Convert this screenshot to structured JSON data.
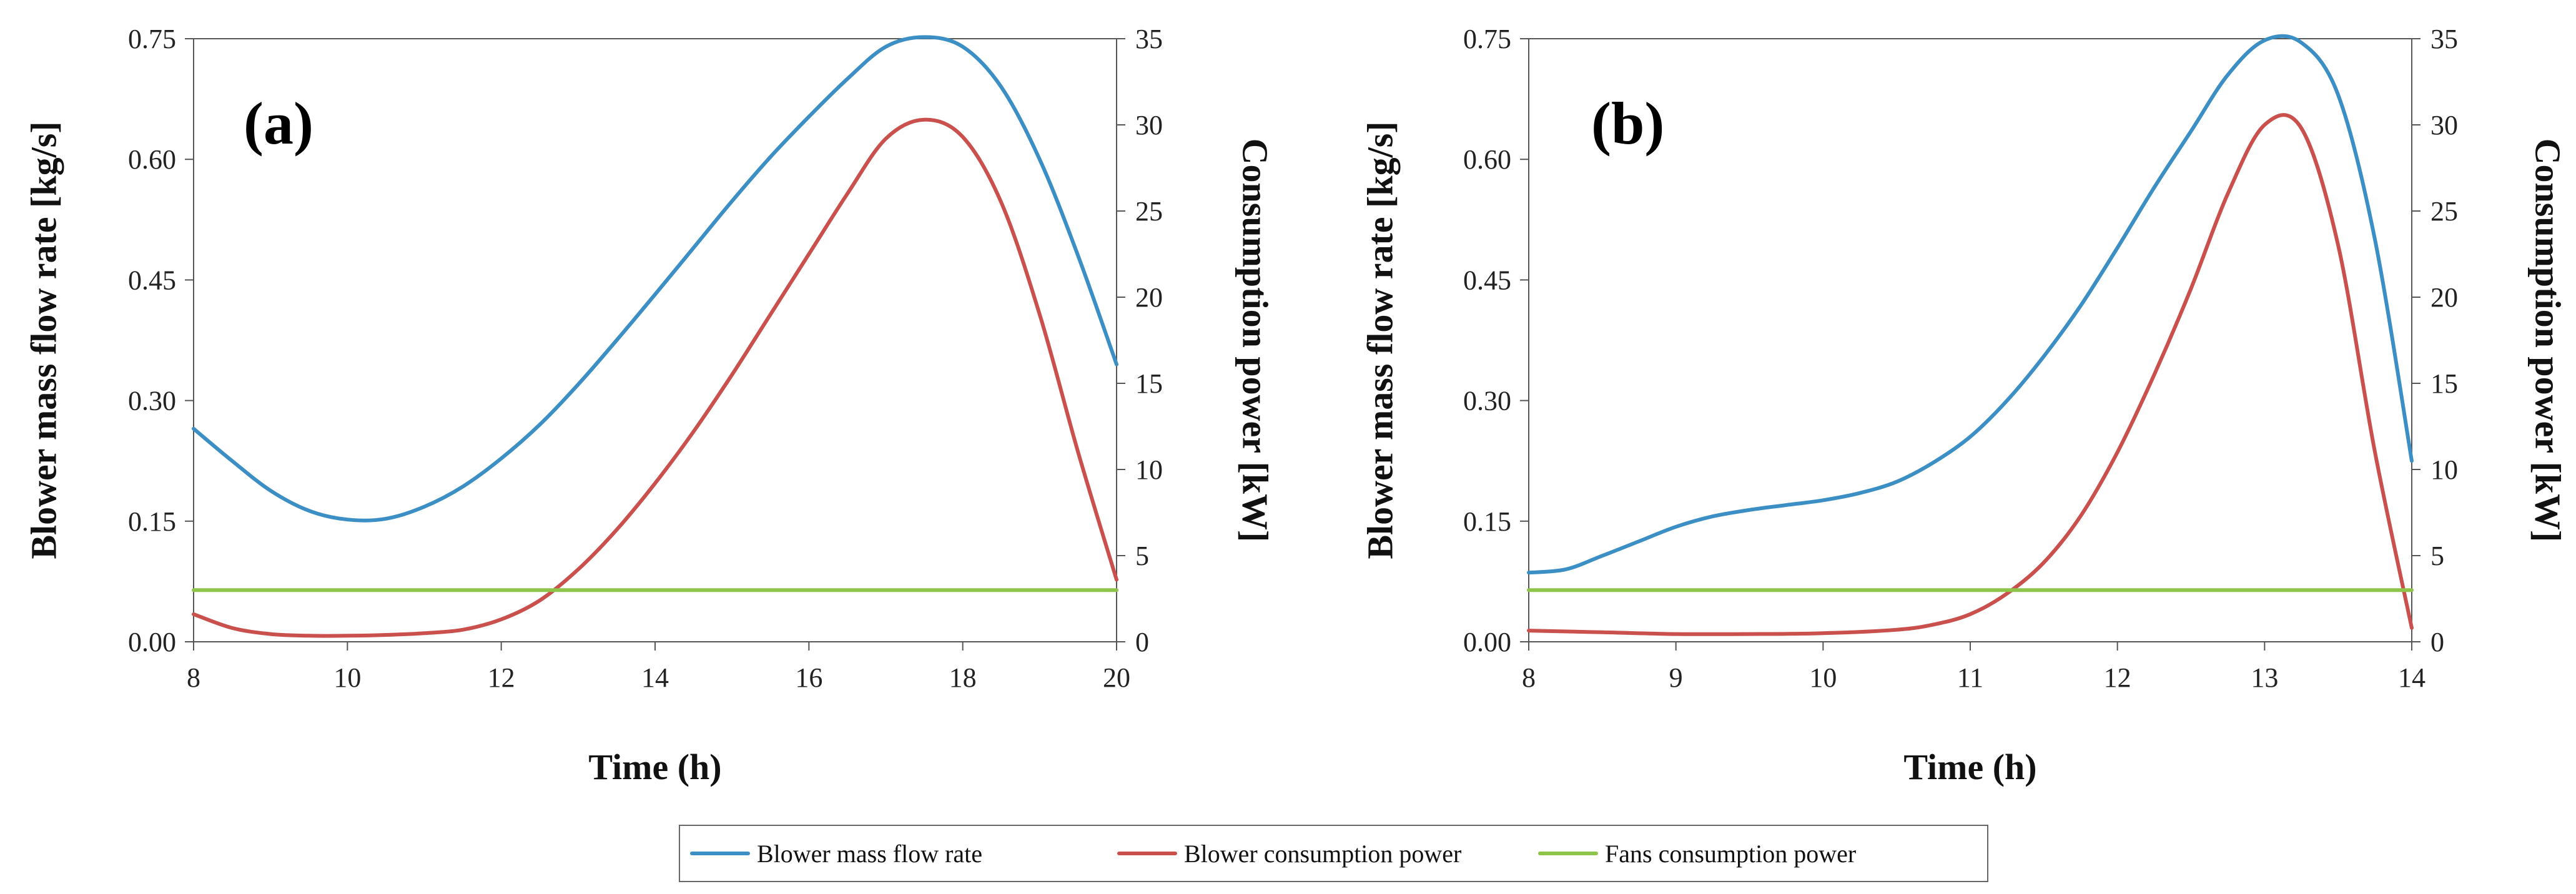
{
  "chart_data": [
    {
      "type": "line",
      "panel_label": "(a)",
      "xlabel": "Time (h)",
      "ylabel": "Blower mass flow rate [kg/s]",
      "y2label": "Consumption power [kW]",
      "xlim": [
        8,
        20
      ],
      "ylim": [
        0,
        0.75
      ],
      "y2lim": [
        0,
        35
      ],
      "x_ticks": [
        "8",
        "10",
        "12",
        "14",
        "16",
        "18",
        "20"
      ],
      "y_ticks": [
        "0.00",
        "0.15",
        "0.30",
        "0.45",
        "0.60",
        "0.75"
      ],
      "y2_ticks": [
        "0",
        "5",
        "10",
        "15",
        "20",
        "25",
        "30",
        "35"
      ],
      "series": [
        {
          "name": "Blower mass flow rate",
          "axis": "left",
          "color": "#3b8fc4",
          "x": [
            8,
            8.5,
            9,
            9.5,
            10,
            10.5,
            11,
            11.5,
            12,
            12.5,
            13,
            13.5,
            14,
            14.5,
            15,
            15.5,
            16,
            16.5,
            17,
            17.5,
            18,
            18.5,
            19,
            19.5,
            20
          ],
          "y": [
            0.265,
            0.225,
            0.188,
            0.163,
            0.152,
            0.153,
            0.168,
            0.193,
            0.228,
            0.27,
            0.32,
            0.375,
            0.432,
            0.49,
            0.548,
            0.603,
            0.653,
            0.7,
            0.74,
            0.752,
            0.74,
            0.69,
            0.6,
            0.48,
            0.345
          ]
        },
        {
          "name": "Blower consumption power",
          "axis": "right",
          "color": "#c9504c",
          "x": [
            8,
            8.5,
            9,
            9.5,
            10,
            10.5,
            11,
            11.5,
            12,
            12.5,
            13,
            13.5,
            14,
            14.5,
            15,
            15.5,
            16,
            16.5,
            17,
            17.5,
            18,
            18.5,
            19,
            19.5,
            20
          ],
          "y": [
            1.6,
            0.8,
            0.45,
            0.35,
            0.35,
            0.4,
            0.5,
            0.7,
            1.3,
            2.4,
            4.2,
            6.5,
            9.2,
            12.2,
            15.5,
            19.0,
            22.5,
            26.0,
            29.2,
            30.3,
            29.3,
            25.5,
            19.0,
            11.0,
            3.6
          ]
        },
        {
          "name": "Fans consumption power",
          "axis": "right",
          "color": "#8ec44a",
          "x": [
            8,
            20
          ],
          "y": [
            3.0,
            3.0
          ]
        }
      ]
    },
    {
      "type": "line",
      "panel_label": "(b)",
      "xlabel": "Time (h)",
      "ylabel": "Blower mass flow rate [kg/s]",
      "y2label": "Consumption power [kW]",
      "xlim": [
        8,
        14
      ],
      "ylim": [
        0,
        0.75
      ],
      "y2lim": [
        0,
        35
      ],
      "x_ticks": [
        "8",
        "9",
        "10",
        "11",
        "12",
        "13",
        "14"
      ],
      "y_ticks": [
        "0.00",
        "0.15",
        "0.30",
        "0.45",
        "0.60",
        "0.75"
      ],
      "y2_ticks": [
        "0",
        "5",
        "10",
        "15",
        "20",
        "25",
        "30",
        "35"
      ],
      "series": [
        {
          "name": "Blower mass flow rate",
          "axis": "left",
          "color": "#3b8fc4",
          "x": [
            8,
            8.25,
            8.5,
            8.75,
            9,
            9.25,
            9.5,
            9.75,
            10,
            10.25,
            10.5,
            10.75,
            11,
            11.25,
            11.5,
            11.75,
            12,
            12.25,
            12.5,
            12.75,
            13,
            13.25,
            13.5,
            13.75,
            14
          ],
          "y": [
            0.086,
            0.09,
            0.107,
            0.125,
            0.143,
            0.156,
            0.164,
            0.17,
            0.176,
            0.185,
            0.199,
            0.223,
            0.255,
            0.3,
            0.355,
            0.418,
            0.49,
            0.565,
            0.635,
            0.705,
            0.748,
            0.745,
            0.68,
            0.5,
            0.225
          ]
        },
        {
          "name": "Blower consumption power",
          "axis": "right",
          "color": "#c9504c",
          "x": [
            8,
            8.5,
            9,
            9.5,
            10,
            10.5,
            10.75,
            11,
            11.25,
            11.5,
            11.75,
            12,
            12.25,
            12.5,
            12.75,
            13,
            13.25,
            13.5,
            13.75,
            14
          ],
          "y": [
            0.65,
            0.55,
            0.45,
            0.45,
            0.5,
            0.7,
            1.0,
            1.6,
            2.8,
            4.6,
            7.3,
            11.0,
            15.5,
            20.5,
            26.0,
            30.0,
            29.8,
            23.0,
            11.0,
            0.8
          ]
        },
        {
          "name": "Fans consumption power",
          "axis": "right",
          "color": "#8ec44a",
          "x": [
            8,
            14
          ],
          "y": [
            3.0,
            3.0
          ]
        }
      ]
    }
  ],
  "legend": {
    "entries": [
      {
        "label": "Blower mass flow rate",
        "color": "#3b8fc4"
      },
      {
        "label": "Blower consumption power",
        "color": "#c9504c"
      },
      {
        "label": "Fans consumption power",
        "color": "#8ec44a"
      }
    ]
  }
}
